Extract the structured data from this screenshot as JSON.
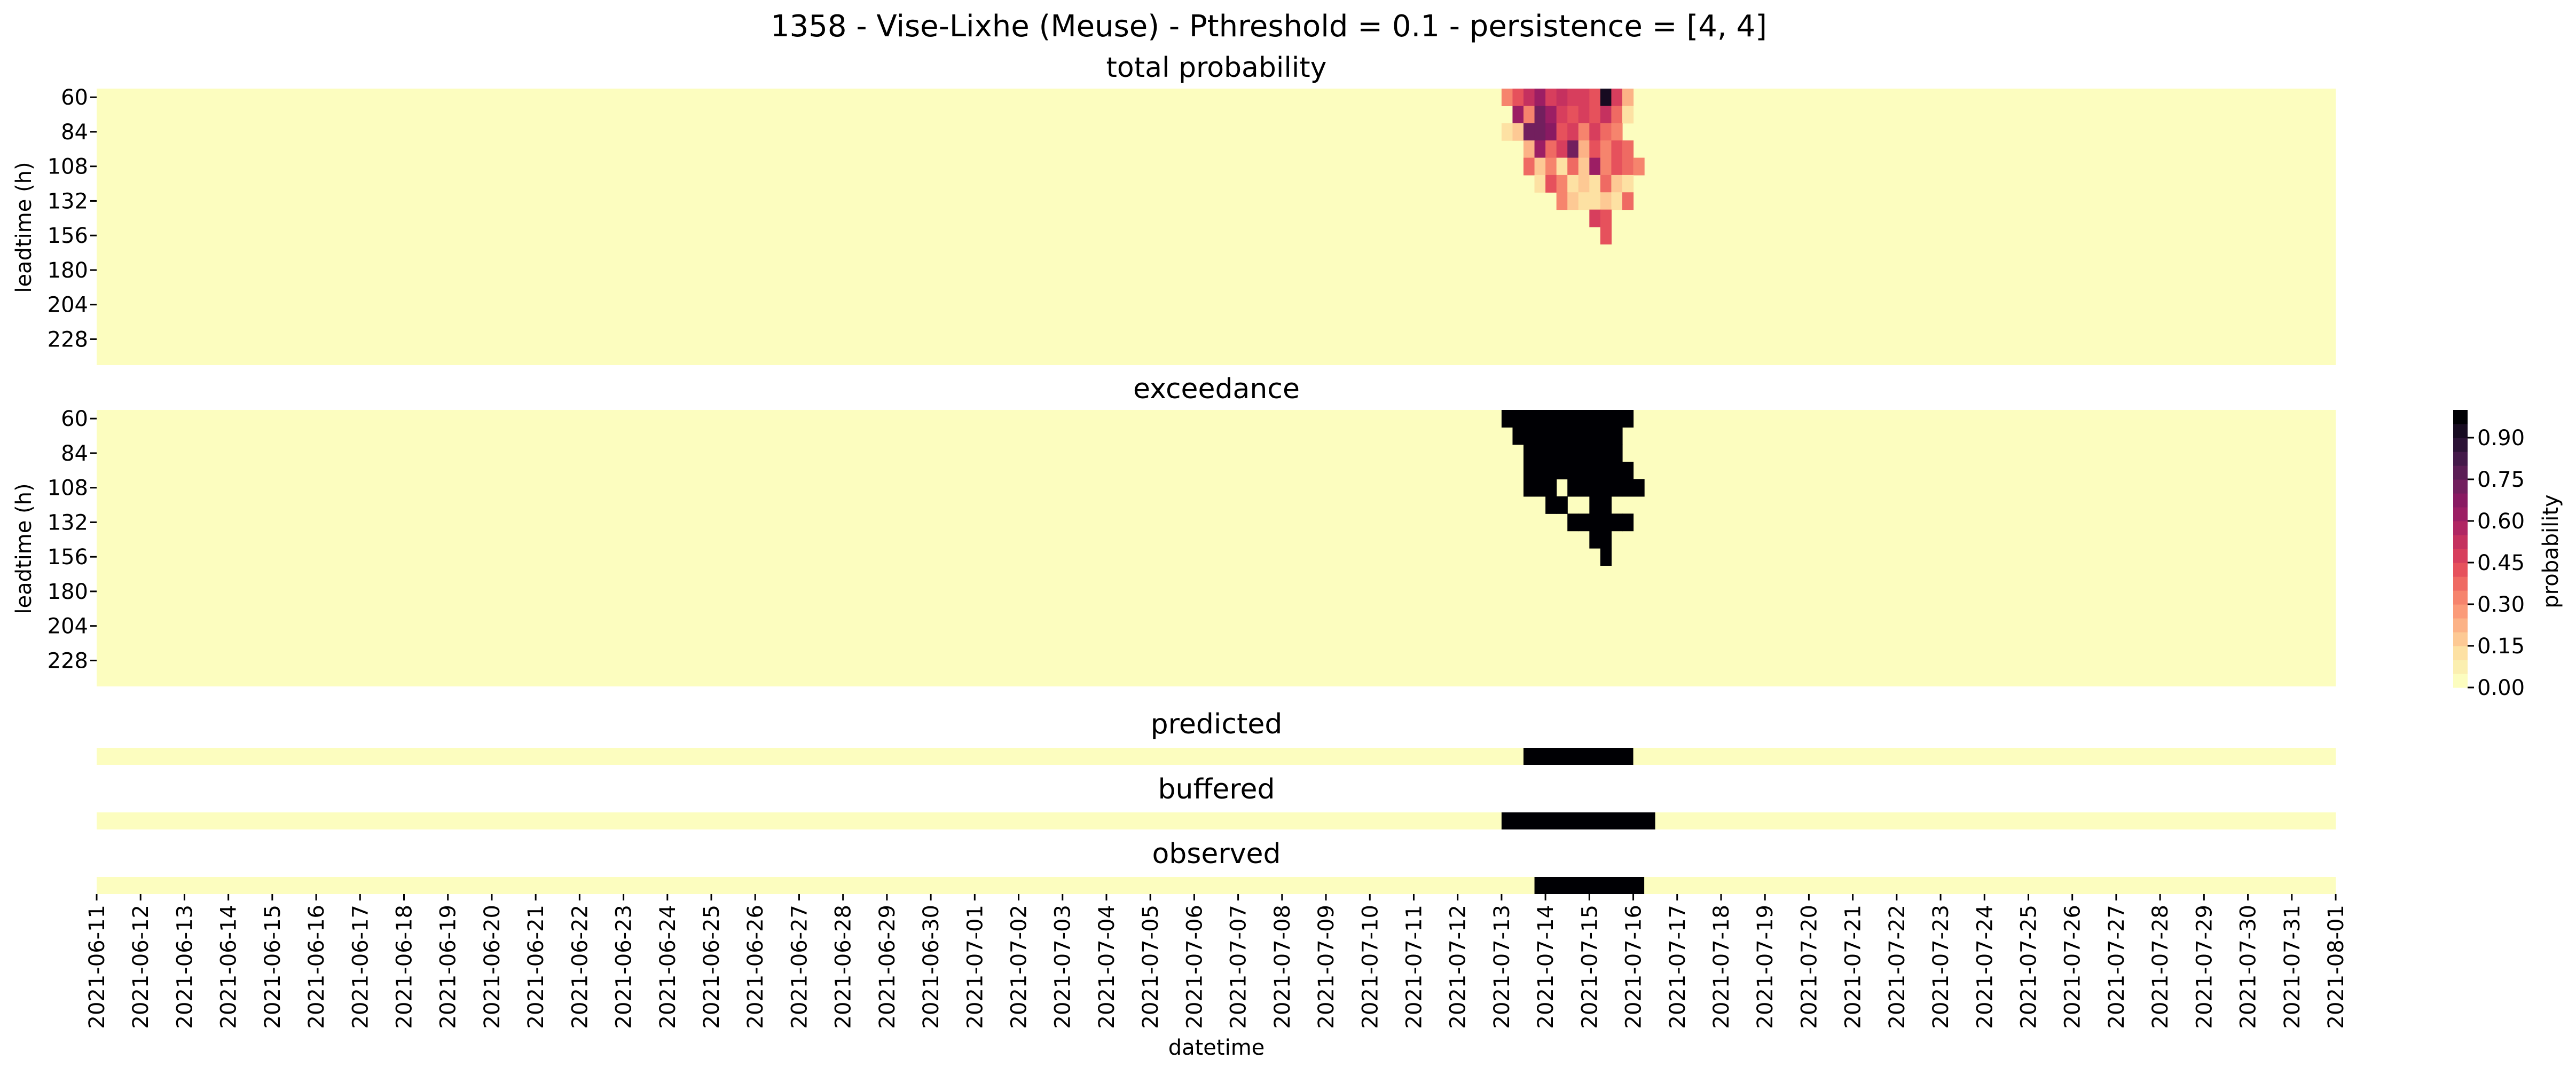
{
  "title": "1358 - Vise-Lixhe (Meuse) - Pthreshold = 0.1 - persistence = [4, 4]",
  "panels": {
    "total_probability": {
      "title": "total probability",
      "ylabel": "leadtime (h)"
    },
    "exceedance": {
      "title": "exceedance",
      "ylabel": "leadtime (h)"
    },
    "predicted": {
      "title": "predicted"
    },
    "buffered": {
      "title": "buffered"
    },
    "observed": {
      "title": "observed"
    }
  },
  "xlabel": "datetime",
  "colorbar": {
    "label": "probability",
    "ticks": [
      "0.00",
      "0.15",
      "0.30",
      "0.45",
      "0.60",
      "0.75",
      "0.90"
    ],
    "colors": [
      "#fcfdbf",
      "#fbefb0",
      "#fde1a3",
      "#fdc994",
      "#fcb286",
      "#fb9b79",
      "#f6846d",
      "#ef6a63",
      "#e6515c",
      "#d73e5d",
      "#c5315f",
      "#b02663",
      "#9c1e64",
      "#891a62",
      "#721f5e",
      "#5b1e55",
      "#441a4a",
      "#2c1336",
      "#170b21",
      "#000004"
    ]
  },
  "chart_data": {
    "type": "heatmap",
    "x_start": "2021-06-11",
    "steps_per_day": 4,
    "x_ticks": [
      "2021-06-11",
      "2021-06-12",
      "2021-06-13",
      "2021-06-14",
      "2021-06-15",
      "2021-06-16",
      "2021-06-17",
      "2021-06-18",
      "2021-06-19",
      "2021-06-20",
      "2021-06-21",
      "2021-06-22",
      "2021-06-23",
      "2021-06-24",
      "2021-06-25",
      "2021-06-26",
      "2021-06-27",
      "2021-06-28",
      "2021-06-29",
      "2021-06-30",
      "2021-07-01",
      "2021-07-02",
      "2021-07-03",
      "2021-07-04",
      "2021-07-05",
      "2021-07-06",
      "2021-07-07",
      "2021-07-08",
      "2021-07-09",
      "2021-07-10",
      "2021-07-11",
      "2021-07-12",
      "2021-07-13",
      "2021-07-14",
      "2021-07-15",
      "2021-07-16",
      "2021-07-17",
      "2021-07-18",
      "2021-07-19",
      "2021-07-20",
      "2021-07-21",
      "2021-07-22",
      "2021-07-23",
      "2021-07-24",
      "2021-07-25",
      "2021-07-26",
      "2021-07-27",
      "2021-07-28",
      "2021-07-29",
      "2021-07-30",
      "2021-07-31",
      "2021-08-01"
    ],
    "leadtimes": [
      60,
      72,
      84,
      96,
      108,
      120,
      132,
      144,
      156,
      168,
      180,
      192,
      204,
      216,
      228,
      240
    ],
    "leadtime_ticks": [
      "60",
      "84",
      "108",
      "132",
      "156",
      "180",
      "204",
      "228"
    ],
    "total_probability": {
      "60": {
        "0": 0.3,
        "1": 0.4,
        "2": 0.5,
        "3": 0.6,
        "4": 0.45,
        "5": 0.5,
        "6": 0.45,
        "7": 0.45,
        "8": 0.4,
        "9": 0.9,
        "10": 0.45,
        "11": 0.2
      },
      "72": {
        "1": 0.6,
        "2": 0.3,
        "3": 0.7,
        "4": 0.6,
        "5": 0.45,
        "6": 0.4,
        "7": 0.45,
        "8": 0.4,
        "9": 0.5,
        "10": 0.35,
        "11": 0.1
      },
      "84": {
        "0": 0.1,
        "1": 0.15,
        "2": 0.7,
        "3": 0.7,
        "4": 0.65,
        "5": 0.4,
        "6": 0.45,
        "7": 0.3,
        "8": 0.45,
        "9": 0.35,
        "10": 0.3
      },
      "96": {
        "2": 0.2,
        "3": 0.6,
        "4": 0.35,
        "5": 0.45,
        "6": 0.7,
        "7": 0.2,
        "8": 0.4,
        "9": 0.3,
        "10": 0.4,
        "11": 0.35
      },
      "108": {
        "2": 0.35,
        "3": 0.15,
        "4": 0.3,
        "5": 0.1,
        "6": 0.35,
        "7": 0.15,
        "8": 0.6,
        "9": 0.3,
        "10": 0.4,
        "11": 0.35,
        "12": 0.3
      },
      "120": {
        "3": 0.1,
        "4": 0.4,
        "5": 0.3,
        "6": 0.1,
        "7": 0.15,
        "8": 0.1,
        "9": 0.35,
        "10": 0.15,
        "11": 0.1
      },
      "132": {
        "5": 0.3,
        "6": 0.15,
        "7": 0.1,
        "8": 0.1,
        "9": 0.15,
        "10": 0.1,
        "11": 0.35
      },
      "144": {
        "8": 0.45,
        "9": 0.4
      },
      "156": {
        "9": 0.4
      }
    },
    "total_probability_first_step": 128,
    "exceedance": {
      "60": [
        128,
        139
      ],
      "72": [
        129,
        138
      ],
      "84": [
        130,
        138
      ],
      "96": [
        130,
        139
      ],
      "108": [
        130,
        132,
        134,
        135,
        136,
        137,
        138,
        139,
        140
      ],
      "120": [
        132,
        133,
        136,
        137
      ],
      "132": [
        134,
        139
      ],
      "144": [
        136,
        137
      ],
      "156": [
        137
      ]
    },
    "predicted": {
      "from": 130,
      "to": 139
    },
    "buffered": {
      "from": 128,
      "to": 141
    },
    "observed": {
      "from": 131,
      "to": 140
    },
    "zmin": 0,
    "zmax": 1
  }
}
